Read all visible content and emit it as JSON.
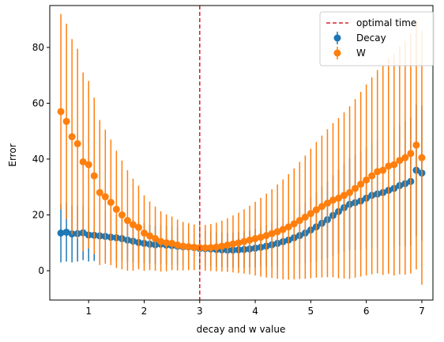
{
  "chart_data": {
    "type": "scatter",
    "title": "",
    "xlabel": "decay and w value",
    "ylabel": "Error",
    "xlim": [
      0.3,
      7.2
    ],
    "ylim": [
      -10.5,
      95
    ],
    "xticks": [
      1,
      2,
      3,
      4,
      5,
      6,
      7
    ],
    "yticks": [
      0,
      20,
      40,
      60,
      80
    ],
    "grid": false,
    "legend_position": "top-right",
    "reference_line": {
      "label": "optimal time",
      "x": 3,
      "color": "#d62728",
      "style": "dashed"
    },
    "series": [
      {
        "name": "Decay",
        "color": "#1f77b4",
        "error_bars": true,
        "x": [
          0.5,
          0.6,
          0.7,
          0.8,
          0.9,
          1.0,
          1.1,
          1.2,
          1.3,
          1.4,
          1.5,
          1.6,
          1.7,
          1.8,
          1.9,
          2.0,
          2.1,
          2.2,
          2.3,
          2.4,
          2.5,
          2.6,
          2.7,
          2.8,
          2.9,
          3.0,
          3.1,
          3.2,
          3.3,
          3.4,
          3.5,
          3.6,
          3.7,
          3.8,
          3.9,
          4.0,
          4.1,
          4.2,
          4.3,
          4.4,
          4.5,
          4.6,
          4.7,
          4.8,
          4.9,
          5.0,
          5.1,
          5.2,
          5.3,
          5.4,
          5.5,
          5.6,
          5.7,
          5.8,
          5.9,
          6.0,
          6.1,
          6.2,
          6.3,
          6.4,
          6.5,
          6.6,
          6.7,
          6.8,
          6.9,
          7.0
        ],
        "y": [
          13.5,
          13.8,
          13.2,
          13.3,
          13.6,
          12.8,
          12.7,
          12.5,
          12.3,
          12.0,
          11.8,
          11.5,
          11.0,
          10.6,
          10.1,
          9.8,
          9.5,
          9.3,
          9.5,
          9.2,
          9.0,
          8.8,
          8.6,
          8.5,
          8.3,
          8.0,
          7.9,
          7.8,
          7.6,
          7.5,
          7.4,
          7.4,
          7.5,
          7.6,
          7.8,
          8.1,
          8.4,
          8.8,
          9.3,
          9.8,
          10.4,
          11.0,
          11.8,
          12.6,
          13.5,
          14.6,
          15.7,
          17.0,
          18.3,
          19.8,
          21.2,
          22.6,
          23.8,
          24.4,
          25.0,
          26.0,
          27.0,
          27.5,
          28.0,
          28.8,
          29.5,
          30.5,
          31.2,
          32.0,
          36.0,
          35.0
        ],
        "yerr": [
          10.5,
          10.5,
          10.2,
          10.0,
          9.8,
          9.5,
          9.2,
          9.0,
          8.8,
          8.5,
          8.2,
          8.0,
          7.8,
          7.6,
          7.4,
          7.2,
          7.0,
          6.9,
          7.0,
          6.9,
          6.8,
          6.7,
          6.6,
          6.5,
          6.4,
          6.3,
          6.3,
          6.2,
          6.2,
          6.2,
          6.2,
          6.3,
          6.4,
          6.5,
          6.7,
          6.9,
          7.1,
          7.4,
          7.8,
          8.2,
          8.6,
          9.1,
          9.7,
          10.3,
          10.9,
          11.6,
          12.3,
          13.0,
          13.7,
          14.4,
          15.1,
          15.8,
          16.4,
          17.0,
          17.6,
          18.2,
          18.8,
          19.4,
          20.0,
          20.6,
          21.2,
          21.8,
          22.4,
          23.0,
          23.6,
          24.2
        ]
      },
      {
        "name": "W",
        "color": "#ff7f0e",
        "error_bars": true,
        "x": [
          0.5,
          0.6,
          0.7,
          0.8,
          0.9,
          1.0,
          1.1,
          1.2,
          1.3,
          1.4,
          1.5,
          1.6,
          1.7,
          1.8,
          1.9,
          2.0,
          2.1,
          2.2,
          2.3,
          2.4,
          2.5,
          2.6,
          2.7,
          2.8,
          2.9,
          3.0,
          3.1,
          3.2,
          3.3,
          3.4,
          3.5,
          3.6,
          3.7,
          3.8,
          3.9,
          4.0,
          4.1,
          4.2,
          4.3,
          4.4,
          4.5,
          4.6,
          4.7,
          4.8,
          4.9,
          5.0,
          5.1,
          5.2,
          5.3,
          5.4,
          5.5,
          5.6,
          5.7,
          5.8,
          5.9,
          6.0,
          6.1,
          6.2,
          6.3,
          6.4,
          6.5,
          6.6,
          6.7,
          6.8,
          6.9,
          7.0
        ],
        "y": [
          57.0,
          53.5,
          48.0,
          45.5,
          39.0,
          38.0,
          34.0,
          28.0,
          26.5,
          24.5,
          22.0,
          20.0,
          18.0,
          16.5,
          15.5,
          13.5,
          12.5,
          11.5,
          10.5,
          10.0,
          9.8,
          9.2,
          8.8,
          8.6,
          8.4,
          8.3,
          8.2,
          8.3,
          8.5,
          8.8,
          9.2,
          9.6,
          10.0,
          10.5,
          11.0,
          11.5,
          12.0,
          12.6,
          13.3,
          14.0,
          14.8,
          15.7,
          16.8,
          18.0,
          19.2,
          20.5,
          21.8,
          23.0,
          24.2,
          25.3,
          26.0,
          27.0,
          28.0,
          29.5,
          31.0,
          32.5,
          34.0,
          35.5,
          36.0,
          37.5,
          38.0,
          39.5,
          40.5,
          42.0,
          45.0,
          40.5
        ],
        "yerr": [
          35.0,
          35.0,
          35.0,
          34.0,
          32.0,
          30.0,
          28.0,
          26.0,
          24.0,
          22.5,
          21.0,
          19.5,
          18.0,
          16.5,
          15.0,
          13.5,
          12.3,
          11.5,
          10.8,
          10.2,
          9.6,
          9.1,
          8.7,
          8.4,
          8.2,
          8.1,
          8.2,
          8.4,
          8.7,
          9.1,
          9.6,
          10.2,
          10.8,
          11.5,
          12.3,
          13.2,
          14.1,
          15.0,
          15.9,
          16.9,
          17.9,
          18.9,
          19.9,
          21.0,
          22.1,
          23.2,
          24.3,
          25.4,
          26.5,
          27.6,
          28.7,
          29.8,
          30.9,
          32.0,
          33.1,
          34.2,
          35.3,
          36.4,
          37.5,
          38.6,
          39.7,
          40.8,
          41.9,
          43.0,
          44.5,
          45.5
        ]
      }
    ]
  }
}
